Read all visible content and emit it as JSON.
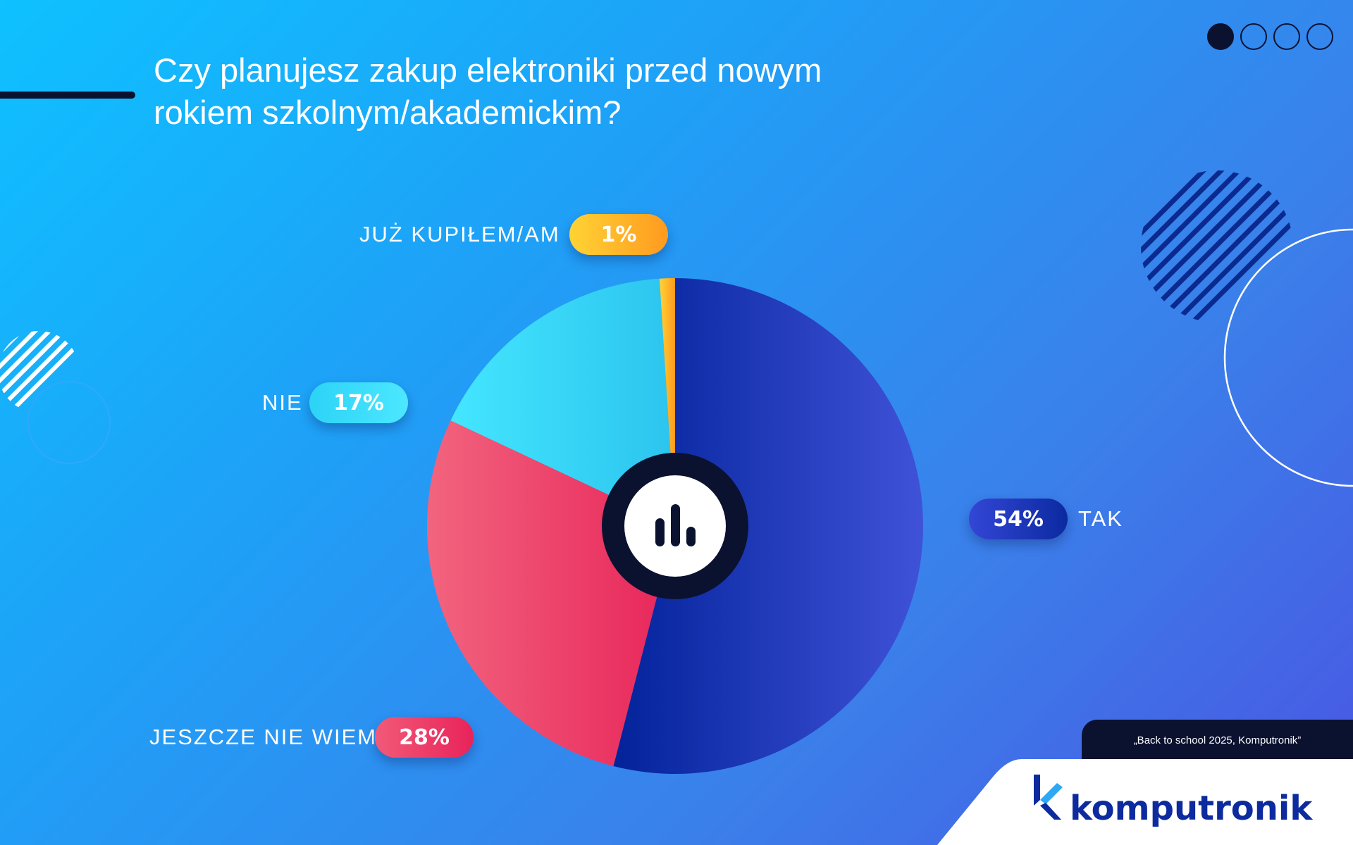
{
  "header": {
    "title": "Czy planujesz zakup elektroniki przed nowym rokiem szkolnym/akademickim?",
    "pagination": {
      "total": 4,
      "active": 0
    }
  },
  "chart_data": {
    "type": "pie",
    "title": "Czy planujesz zakup elektroniki przed nowym rokiem szkolnym/akademickim?",
    "slices": [
      {
        "key": "tak",
        "label": "TAK",
        "value": 54,
        "value_label": "54%",
        "colors": [
          "#03239a",
          "#3f52d8"
        ]
      },
      {
        "key": "jeszcze",
        "label": "JESZCZE NIE WIEM",
        "value": 28,
        "value_label": "28%",
        "colors": [
          "#f2647e",
          "#e8255a"
        ]
      },
      {
        "key": "nie",
        "label": "NIE",
        "value": 17,
        "value_label": "17%",
        "colors": [
          "#44e6ff",
          "#2cc4ee"
        ]
      },
      {
        "key": "juz",
        "label": "JUŻ KUPIŁEM/AM",
        "value": 1,
        "value_label": "1%",
        "colors": [
          "#ffd335",
          "#ff9a1f"
        ]
      }
    ],
    "center_icon": "bar-chart-icon"
  },
  "footer": {
    "source": "„Back to school 2025, Komputronik”",
    "brand": "komputronik",
    "brand_color": "#0d2a9e"
  }
}
